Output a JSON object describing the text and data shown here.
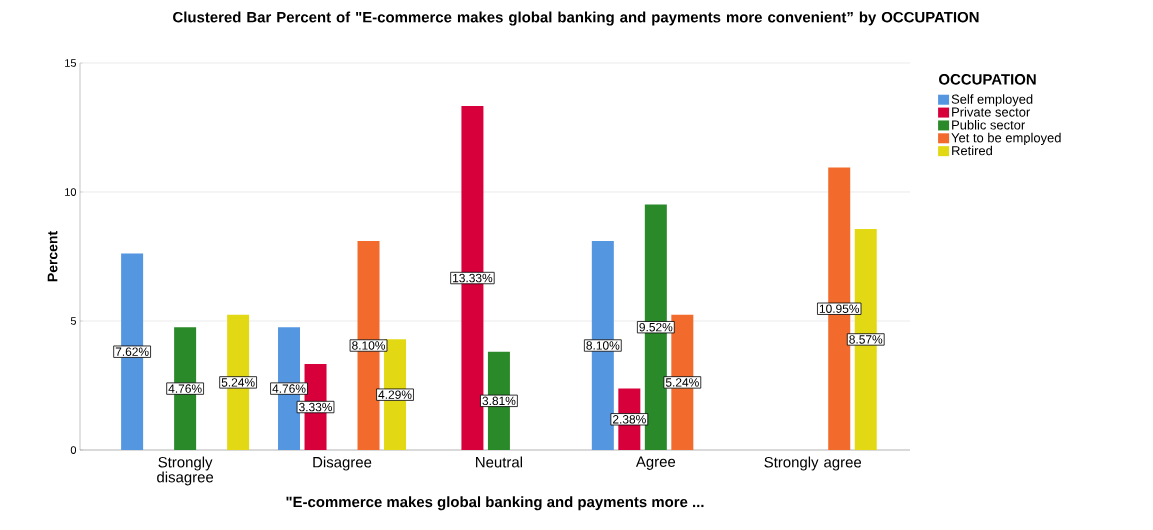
{
  "chart_data": {
    "type": "bar",
    "title": "Clustered Bar Percent of \"E-commerce makes global banking and payments more convenient” by OCCUPATION",
    "xlabel": "\"E-commerce makes global banking and payments more ...",
    "ylabel": "Percent",
    "legend_title": "OCCUPATION",
    "categories": [
      "Strongly disagree",
      "Disagree",
      "Neutral",
      "Agree",
      "Strongly agree"
    ],
    "series": [
      {
        "name": "Self employed",
        "color": "#5596e0",
        "values": [
          7.62,
          4.76,
          null,
          8.1,
          null
        ],
        "value_labels": [
          "7.62%",
          "4.76%",
          null,
          "8.10%",
          null
        ]
      },
      {
        "name": "Private sector",
        "color": "#d8003a",
        "values": [
          null,
          3.33,
          13.33,
          2.38,
          null
        ],
        "value_labels": [
          null,
          "3.33%",
          "13.33%",
          "2.38%",
          null
        ]
      },
      {
        "name": "Public sector",
        "color": "#2a8a2a",
        "values": [
          4.76,
          null,
          3.81,
          9.52,
          null
        ],
        "value_labels": [
          "4.76%",
          null,
          "3.81%",
          "9.52%",
          null
        ]
      },
      {
        "name": "Yet to be employed",
        "color": "#f26a2c",
        "values": [
          null,
          8.1,
          null,
          5.24,
          10.95
        ],
        "value_labels": [
          null,
          "8.10%",
          null,
          "5.24%",
          "10.95%"
        ]
      },
      {
        "name": "Retired",
        "color": "#e3d814",
        "values": [
          5.24,
          4.29,
          null,
          null,
          8.57
        ],
        "value_labels": [
          "5.24%",
          "4.29%",
          null,
          null,
          "8.57%"
        ]
      }
    ],
    "ylim": [
      0,
      15
    ],
    "yticks": [
      0,
      5,
      10,
      15
    ],
    "grid": "y",
    "legend": "top right"
  }
}
